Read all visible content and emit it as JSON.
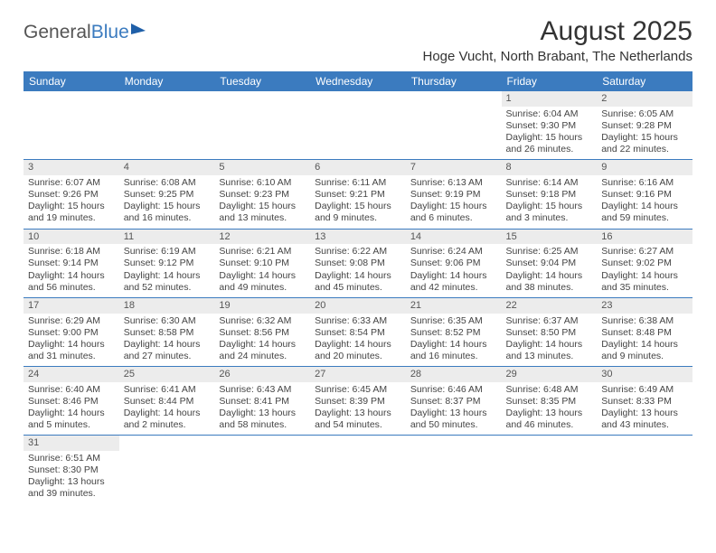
{
  "logo": {
    "text1": "General",
    "text2": "Blue"
  },
  "title": "August 2025",
  "location": "Hoge Vucht, North Brabant, The Netherlands",
  "colors": {
    "header_bg": "#3b7bbf",
    "header_text": "#ffffff",
    "daynum_bg": "#ececec",
    "row_border": "#3b7bbf",
    "text": "#444444",
    "background": "#ffffff"
  },
  "weekdays": [
    "Sunday",
    "Monday",
    "Tuesday",
    "Wednesday",
    "Thursday",
    "Friday",
    "Saturday"
  ],
  "weeks": [
    [
      {
        "empty": true
      },
      {
        "empty": true
      },
      {
        "empty": true
      },
      {
        "empty": true
      },
      {
        "empty": true
      },
      {
        "num": "1",
        "sunrise": "Sunrise: 6:04 AM",
        "sunset": "Sunset: 9:30 PM",
        "daylight": "Daylight: 15 hours and 26 minutes."
      },
      {
        "num": "2",
        "sunrise": "Sunrise: 6:05 AM",
        "sunset": "Sunset: 9:28 PM",
        "daylight": "Daylight: 15 hours and 22 minutes."
      }
    ],
    [
      {
        "num": "3",
        "sunrise": "Sunrise: 6:07 AM",
        "sunset": "Sunset: 9:26 PM",
        "daylight": "Daylight: 15 hours and 19 minutes."
      },
      {
        "num": "4",
        "sunrise": "Sunrise: 6:08 AM",
        "sunset": "Sunset: 9:25 PM",
        "daylight": "Daylight: 15 hours and 16 minutes."
      },
      {
        "num": "5",
        "sunrise": "Sunrise: 6:10 AM",
        "sunset": "Sunset: 9:23 PM",
        "daylight": "Daylight: 15 hours and 13 minutes."
      },
      {
        "num": "6",
        "sunrise": "Sunrise: 6:11 AM",
        "sunset": "Sunset: 9:21 PM",
        "daylight": "Daylight: 15 hours and 9 minutes."
      },
      {
        "num": "7",
        "sunrise": "Sunrise: 6:13 AM",
        "sunset": "Sunset: 9:19 PM",
        "daylight": "Daylight: 15 hours and 6 minutes."
      },
      {
        "num": "8",
        "sunrise": "Sunrise: 6:14 AM",
        "sunset": "Sunset: 9:18 PM",
        "daylight": "Daylight: 15 hours and 3 minutes."
      },
      {
        "num": "9",
        "sunrise": "Sunrise: 6:16 AM",
        "sunset": "Sunset: 9:16 PM",
        "daylight": "Daylight: 14 hours and 59 minutes."
      }
    ],
    [
      {
        "num": "10",
        "sunrise": "Sunrise: 6:18 AM",
        "sunset": "Sunset: 9:14 PM",
        "daylight": "Daylight: 14 hours and 56 minutes."
      },
      {
        "num": "11",
        "sunrise": "Sunrise: 6:19 AM",
        "sunset": "Sunset: 9:12 PM",
        "daylight": "Daylight: 14 hours and 52 minutes."
      },
      {
        "num": "12",
        "sunrise": "Sunrise: 6:21 AM",
        "sunset": "Sunset: 9:10 PM",
        "daylight": "Daylight: 14 hours and 49 minutes."
      },
      {
        "num": "13",
        "sunrise": "Sunrise: 6:22 AM",
        "sunset": "Sunset: 9:08 PM",
        "daylight": "Daylight: 14 hours and 45 minutes."
      },
      {
        "num": "14",
        "sunrise": "Sunrise: 6:24 AM",
        "sunset": "Sunset: 9:06 PM",
        "daylight": "Daylight: 14 hours and 42 minutes."
      },
      {
        "num": "15",
        "sunrise": "Sunrise: 6:25 AM",
        "sunset": "Sunset: 9:04 PM",
        "daylight": "Daylight: 14 hours and 38 minutes."
      },
      {
        "num": "16",
        "sunrise": "Sunrise: 6:27 AM",
        "sunset": "Sunset: 9:02 PM",
        "daylight": "Daylight: 14 hours and 35 minutes."
      }
    ],
    [
      {
        "num": "17",
        "sunrise": "Sunrise: 6:29 AM",
        "sunset": "Sunset: 9:00 PM",
        "daylight": "Daylight: 14 hours and 31 minutes."
      },
      {
        "num": "18",
        "sunrise": "Sunrise: 6:30 AM",
        "sunset": "Sunset: 8:58 PM",
        "daylight": "Daylight: 14 hours and 27 minutes."
      },
      {
        "num": "19",
        "sunrise": "Sunrise: 6:32 AM",
        "sunset": "Sunset: 8:56 PM",
        "daylight": "Daylight: 14 hours and 24 minutes."
      },
      {
        "num": "20",
        "sunrise": "Sunrise: 6:33 AM",
        "sunset": "Sunset: 8:54 PM",
        "daylight": "Daylight: 14 hours and 20 minutes."
      },
      {
        "num": "21",
        "sunrise": "Sunrise: 6:35 AM",
        "sunset": "Sunset: 8:52 PM",
        "daylight": "Daylight: 14 hours and 16 minutes."
      },
      {
        "num": "22",
        "sunrise": "Sunrise: 6:37 AM",
        "sunset": "Sunset: 8:50 PM",
        "daylight": "Daylight: 14 hours and 13 minutes."
      },
      {
        "num": "23",
        "sunrise": "Sunrise: 6:38 AM",
        "sunset": "Sunset: 8:48 PM",
        "daylight": "Daylight: 14 hours and 9 minutes."
      }
    ],
    [
      {
        "num": "24",
        "sunrise": "Sunrise: 6:40 AM",
        "sunset": "Sunset: 8:46 PM",
        "daylight": "Daylight: 14 hours and 5 minutes."
      },
      {
        "num": "25",
        "sunrise": "Sunrise: 6:41 AM",
        "sunset": "Sunset: 8:44 PM",
        "daylight": "Daylight: 14 hours and 2 minutes."
      },
      {
        "num": "26",
        "sunrise": "Sunrise: 6:43 AM",
        "sunset": "Sunset: 8:41 PM",
        "daylight": "Daylight: 13 hours and 58 minutes."
      },
      {
        "num": "27",
        "sunrise": "Sunrise: 6:45 AM",
        "sunset": "Sunset: 8:39 PM",
        "daylight": "Daylight: 13 hours and 54 minutes."
      },
      {
        "num": "28",
        "sunrise": "Sunrise: 6:46 AM",
        "sunset": "Sunset: 8:37 PM",
        "daylight": "Daylight: 13 hours and 50 minutes."
      },
      {
        "num": "29",
        "sunrise": "Sunrise: 6:48 AM",
        "sunset": "Sunset: 8:35 PM",
        "daylight": "Daylight: 13 hours and 46 minutes."
      },
      {
        "num": "30",
        "sunrise": "Sunrise: 6:49 AM",
        "sunset": "Sunset: 8:33 PM",
        "daylight": "Daylight: 13 hours and 43 minutes."
      }
    ],
    [
      {
        "num": "31",
        "sunrise": "Sunrise: 6:51 AM",
        "sunset": "Sunset: 8:30 PM",
        "daylight": "Daylight: 13 hours and 39 minutes."
      },
      {
        "empty": true
      },
      {
        "empty": true
      },
      {
        "empty": true
      },
      {
        "empty": true
      },
      {
        "empty": true
      },
      {
        "empty": true
      }
    ]
  ]
}
